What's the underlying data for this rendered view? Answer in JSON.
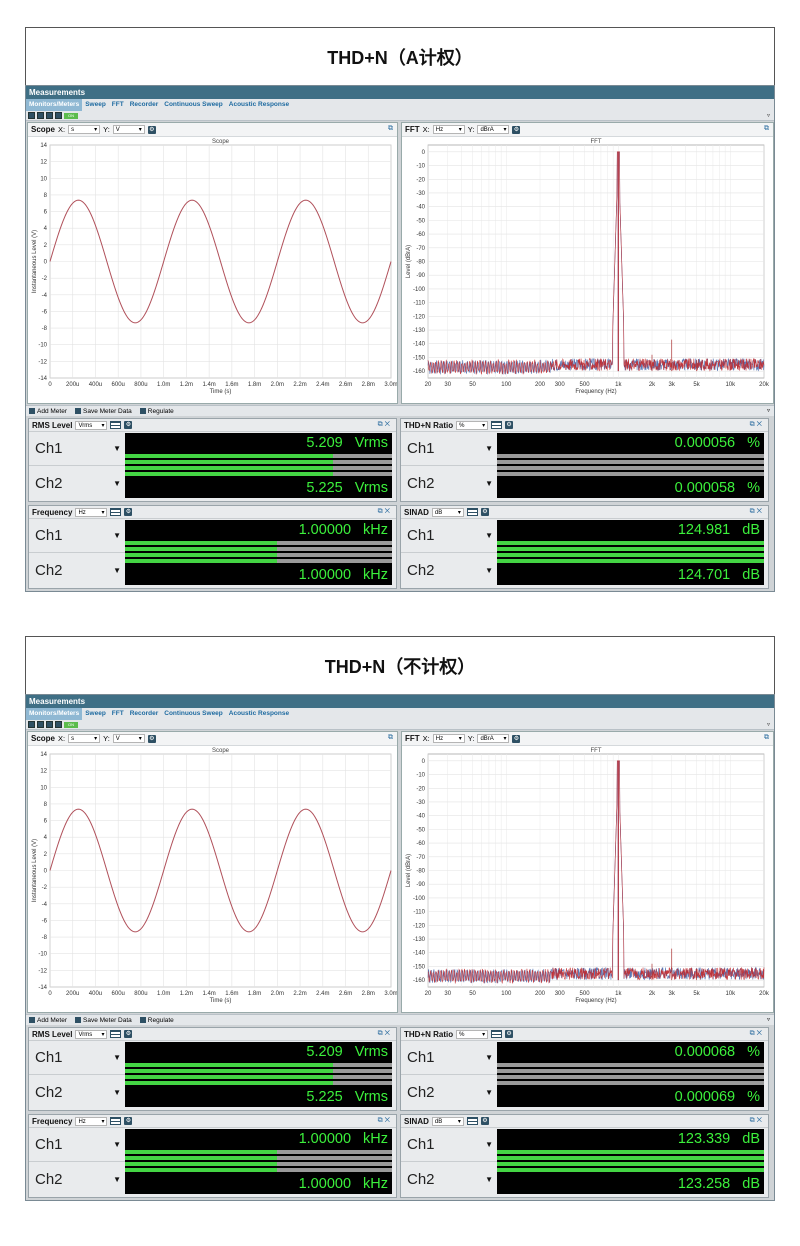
{
  "panels": [
    {
      "title": "THD+N（A计权）",
      "app": {
        "header": "Measurements",
        "tabs": [
          "Monitors/Meters",
          "Sweep",
          "FFT",
          "Recorder",
          "Continuous Sweep",
          "Acoustic Response"
        ],
        "toolbar_on": "ON"
      },
      "scope": {
        "label": "Scope",
        "x_axis": "X:",
        "x_unit": "s",
        "y_axis": "Y:",
        "y_unit": "V"
      },
      "fft": {
        "label": "FFT",
        "x_axis": "X:",
        "x_unit": "Hz",
        "y_axis": "Y:",
        "y_unit": "dBrA"
      },
      "midbar": {
        "add_meter": "Add Meter",
        "save": "Save Meter Data",
        "regulate": "Regulate"
      },
      "meters": {
        "rms": {
          "label": "RMS Level",
          "unit_sel": "Vrms",
          "ch1": "Ch1",
          "ch2": "Ch2",
          "v1": "5.209",
          "v2": "5.225",
          "unit": "Vrms",
          "bar1": 0.78,
          "bar2": 0.78
        },
        "thdn": {
          "label": "THD+N Ratio",
          "unit_sel": "%",
          "ch1": "Ch1",
          "ch2": "Ch2",
          "v1": "0.000056",
          "v2": "0.000058",
          "unit": "%",
          "bar1": 0.0,
          "bar2": 0.0
        },
        "freq": {
          "label": "Frequency",
          "unit_sel": "Hz",
          "ch1": "Ch1",
          "ch2": "Ch2",
          "v1": "1.00000",
          "v2": "1.00000",
          "unit": "kHz",
          "bar1": 0.57,
          "bar2": 0.57
        },
        "sinad": {
          "label": "SINAD",
          "unit_sel": "dB",
          "ch1": "Ch1",
          "ch2": "Ch2",
          "v1": "124.981",
          "v2": "124.701",
          "unit": "dB",
          "bar1": 1.0,
          "bar2": 1.0
        }
      }
    },
    {
      "title": "THD+N（不计权）",
      "app": {
        "header": "Measurements",
        "tabs": [
          "Monitors/Meters",
          "Sweep",
          "FFT",
          "Recorder",
          "Continuous Sweep",
          "Acoustic Response"
        ],
        "toolbar_on": "ON"
      },
      "scope": {
        "label": "Scope",
        "x_axis": "X:",
        "x_unit": "s",
        "y_axis": "Y:",
        "y_unit": "V"
      },
      "fft": {
        "label": "FFT",
        "x_axis": "X:",
        "x_unit": "Hz",
        "y_axis": "Y:",
        "y_unit": "dBrA"
      },
      "midbar": {
        "add_meter": "Add Meter",
        "save": "Save Meter Data",
        "regulate": "Regulate"
      },
      "meters": {
        "rms": {
          "label": "RMS Level",
          "unit_sel": "Vrms",
          "ch1": "Ch1",
          "ch2": "Ch2",
          "v1": "5.209",
          "v2": "5.225",
          "unit": "Vrms",
          "bar1": 0.78,
          "bar2": 0.78
        },
        "thdn": {
          "label": "THD+N Ratio",
          "unit_sel": "%",
          "ch1": "Ch1",
          "ch2": "Ch2",
          "v1": "0.000068",
          "v2": "0.000069",
          "unit": "%",
          "bar1": 0.0,
          "bar2": 0.0
        },
        "freq": {
          "label": "Frequency",
          "unit_sel": "Hz",
          "ch1": "Ch1",
          "ch2": "Ch2",
          "v1": "1.00000",
          "v2": "1.00000",
          "unit": "kHz",
          "bar1": 0.57,
          "bar2": 0.57
        },
        "sinad": {
          "label": "SINAD",
          "unit_sel": "dB",
          "ch1": "Ch1",
          "ch2": "Ch2",
          "v1": "123.339",
          "v2": "123.258",
          "unit": "dB",
          "bar1": 1.0,
          "bar2": 1.0
        }
      }
    }
  ],
  "chart_data": [
    {
      "type": "line",
      "title": "Scope",
      "xlabel": "Time (s)",
      "ylabel": "Instantaneous Level (V)",
      "xlim": [
        0,
        0.003
      ],
      "ylim": [
        -14,
        14
      ],
      "x_ticks": [
        "0",
        "200u",
        "400u",
        "600u",
        "800u",
        "1.0m",
        "1.2m",
        "1.4m",
        "1.6m",
        "1.8m",
        "2.0m",
        "2.2m",
        "2.4m",
        "2.6m",
        "2.8m",
        "3.0m"
      ],
      "y_ticks": [
        "14",
        "12",
        "10",
        "8",
        "6",
        "4",
        "2",
        "0",
        "-2",
        "-4",
        "-6",
        "-8",
        "-10",
        "-12",
        "-14"
      ],
      "series": [
        {
          "amplitude": 7.37,
          "frequency_hz": 1000,
          "phase": 0
        }
      ]
    },
    {
      "type": "line",
      "title": "FFT",
      "xlabel": "Frequency (Hz)",
      "ylabel": "Level (dBrA)",
      "xlim": [
        20,
        20000
      ],
      "ylim": [
        -165,
        5
      ],
      "x_scale": "log",
      "x_ticks": [
        "20",
        "30",
        "50",
        "100",
        "200",
        "300",
        "500",
        "1k",
        "2k",
        "3k",
        "5k",
        "10k",
        "20k"
      ],
      "y_ticks": [
        "0",
        "-10",
        "-20",
        "-30",
        "-40",
        "-50",
        "-60",
        "-70",
        "-80",
        "-90",
        "-100",
        "-110",
        "-120",
        "-130",
        "-140",
        "-150",
        "-160"
      ],
      "series": [
        {
          "color": "#3d5fa8",
          "peak_hz": 1000,
          "peak_db": 0,
          "floor_db": -157
        },
        {
          "color": "#c0282c",
          "peak_hz": 1000,
          "peak_db": 0,
          "floor_db": -157
        }
      ]
    }
  ]
}
